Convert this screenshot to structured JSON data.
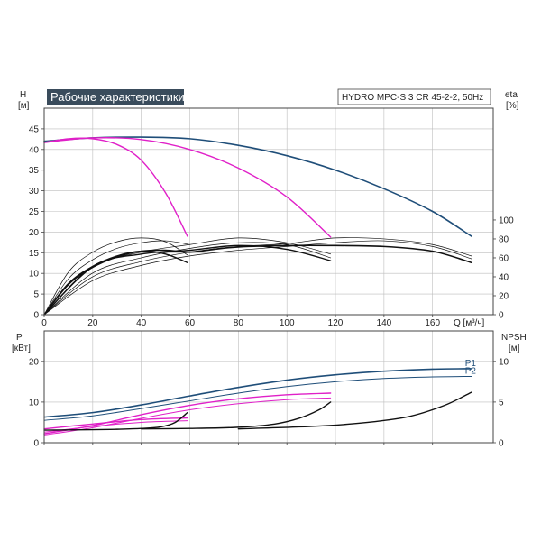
{
  "chart_data": [
    {
      "type": "line",
      "title": "Рабочие характеристики",
      "model": "HYDRO MPC-S 3 CR 45-2-2, 50Hz",
      "xlabel": "Q [м³/ч]",
      "ylabel_left": "H\n[м]",
      "ylabel_right": "eta\n[%]",
      "xlim": [
        0,
        185
      ],
      "ylim_left": [
        0,
        50
      ],
      "ylim_right": [
        0,
        218
      ],
      "x_ticks": [
        "0",
        "20",
        "40",
        "60",
        "80",
        "100",
        "120",
        "140",
        "160"
      ],
      "y_ticks_left": [
        "0",
        "5",
        "10",
        "15",
        "20",
        "25",
        "30",
        "35",
        "40",
        "45"
      ],
      "y_ticks_right": [
        "0",
        "20",
        "40",
        "60",
        "80",
        "100"
      ],
      "grid": true,
      "colors": {
        "head_max": "#1f4e79",
        "head_part": "#e020c8",
        "curves": "#111111"
      },
      "series": [
        {
          "axis": "left",
          "color": "#1f4e79",
          "width": 1.6,
          "points": [
            [
              0,
              42
            ],
            [
              20,
              42.8
            ],
            [
              40,
              43
            ],
            [
              60,
              42.6
            ],
            [
              80,
              41
            ],
            [
              100,
              38.5
            ],
            [
              120,
              35
            ],
            [
              140,
              30.5
            ],
            [
              160,
              25
            ],
            [
              176,
              19
            ]
          ]
        },
        {
          "axis": "left",
          "color": "#e020c8",
          "width": 1.4,
          "points": [
            [
              0,
              41.7
            ],
            [
              20,
              42.8
            ],
            [
              40,
              42.4
            ],
            [
              60,
              40
            ],
            [
              80,
              35.5
            ],
            [
              100,
              28.5
            ],
            [
              118,
              18.8
            ]
          ]
        },
        {
          "axis": "left",
          "color": "#e020c8",
          "width": 1.4,
          "points": [
            [
              0,
              41.7
            ],
            [
              10,
              42.6
            ],
            [
              20,
              42.6
            ],
            [
              30,
              41.2
            ],
            [
              40,
              37.4
            ],
            [
              50,
              29.5
            ],
            [
              59,
              19
            ]
          ]
        },
        {
          "axis": "right",
          "color": "#111111",
          "width": 1.6,
          "points": [
            [
              0,
              0
            ],
            [
              10,
              32
            ],
            [
              20,
              50
            ],
            [
              30,
              61
            ],
            [
              40,
              67
            ],
            [
              50,
              68
            ],
            [
              60,
              66
            ],
            [
              70,
              69
            ],
            [
              80,
              71.5
            ],
            [
              100,
              73
            ],
            [
              120,
              73
            ],
            [
              140,
              72
            ],
            [
              160,
              67
            ],
            [
              176,
              55
            ]
          ]
        },
        {
          "axis": "right",
          "color": "#111111",
          "width": 1.4,
          "points": [
            [
              0,
              0
            ],
            [
              10,
              33
            ],
            [
              20,
              51
            ],
            [
              30,
              62
            ],
            [
              40,
              67
            ],
            [
              50,
              64
            ],
            [
              59,
              55
            ]
          ]
        },
        {
          "axis": "right",
          "color": "#111111",
          "width": 1.4,
          "points": [
            [
              0,
              0
            ],
            [
              20,
              51
            ],
            [
              40,
              64
            ],
            [
              60,
              68
            ],
            [
              80,
              73
            ],
            [
              100,
              69
            ],
            [
              118,
              57
            ]
          ]
        },
        {
          "axis": "right",
          "color": "#111111",
          "width": 0.7,
          "points": [
            [
              0,
              0
            ],
            [
              10,
              45
            ],
            [
              20,
              66
            ],
            [
              30,
              77
            ],
            [
              40,
              81
            ],
            [
              50,
              77
            ],
            [
              59,
              63
            ]
          ]
        },
        {
          "axis": "right",
          "color": "#111111",
          "width": 0.7,
          "points": [
            [
              0,
              0
            ],
            [
              10,
              38
            ],
            [
              20,
              58
            ],
            [
              30,
              70
            ],
            [
              40,
              76
            ],
            [
              50,
              78
            ],
            [
              60,
              74
            ]
          ]
        },
        {
          "axis": "right",
          "color": "#111111",
          "width": 0.7,
          "points": [
            [
              0,
              0
            ],
            [
              20,
              50
            ],
            [
              40,
              66
            ],
            [
              60,
              74
            ],
            [
              80,
              81
            ],
            [
              100,
              76
            ],
            [
              118,
              64
            ]
          ]
        },
        {
          "axis": "right",
          "color": "#111111",
          "width": 0.7,
          "points": [
            [
              0,
              0
            ],
            [
              20,
              44
            ],
            [
              40,
              60
            ],
            [
              60,
              70
            ],
            [
              80,
              76
            ],
            [
              100,
              74
            ],
            [
              118,
              60
            ]
          ]
        },
        {
          "axis": "right",
          "color": "#111111",
          "width": 0.7,
          "points": [
            [
              0,
              0
            ],
            [
              20,
              40
            ],
            [
              40,
              56
            ],
            [
              60,
              66
            ],
            [
              80,
              72
            ],
            [
              100,
              75
            ],
            [
              120,
              81
            ],
            [
              140,
              80
            ],
            [
              160,
              74
            ],
            [
              176,
              62
            ]
          ]
        },
        {
          "axis": "right",
          "color": "#111111",
          "width": 0.7,
          "points": [
            [
              0,
              0
            ],
            [
              20,
              36
            ],
            [
              40,
              52
            ],
            [
              60,
              62
            ],
            [
              80,
              68
            ],
            [
              100,
              72
            ],
            [
              120,
              76
            ],
            [
              140,
              78
            ],
            [
              160,
              72
            ],
            [
              176,
              59
            ]
          ]
        }
      ]
    },
    {
      "type": "line",
      "ylabel_left": "P\n[кВт]",
      "ylabel_right": "NPSH\n[м]",
      "xlim": [
        0,
        185
      ],
      "ylim_left": [
        0,
        27.5
      ],
      "ylim_right": [
        0,
        13.75
      ],
      "y_ticks_left": [
        "0",
        "10",
        "20"
      ],
      "y_ticks_right": [
        "0",
        "5",
        "10"
      ],
      "grid": true,
      "series": [
        {
          "name": "P1",
          "axis": "left",
          "color": "#1f4e79",
          "width": 1.6,
          "points": [
            [
              0,
              6.3
            ],
            [
              20,
              7.4
            ],
            [
              40,
              9.3
            ],
            [
              60,
              11.5
            ],
            [
              80,
              13.6
            ],
            [
              100,
              15.4
            ],
            [
              120,
              16.7
            ],
            [
              140,
              17.6
            ],
            [
              160,
              18.1
            ],
            [
              176,
              18.2
            ]
          ]
        },
        {
          "name": "P2",
          "axis": "left",
          "color": "#1f4e79",
          "width": 1.0,
          "points": [
            [
              0,
              5.5
            ],
            [
              20,
              6.6
            ],
            [
              40,
              8.4
            ],
            [
              60,
              10.3
            ],
            [
              80,
              12.2
            ],
            [
              100,
              13.8
            ],
            [
              120,
              15
            ],
            [
              140,
              15.8
            ],
            [
              160,
              16.2
            ],
            [
              176,
              16.3
            ]
          ]
        },
        {
          "axis": "left",
          "color": "#e020c8",
          "width": 1.4,
          "points": [
            [
              0,
              2.2
            ],
            [
              20,
              4.2
            ],
            [
              40,
              6.9
            ],
            [
              60,
              9.2
            ],
            [
              80,
              10.8
            ],
            [
              100,
              11.8
            ],
            [
              118,
              12.2
            ]
          ]
        },
        {
          "axis": "left",
          "color": "#e020c8",
          "width": 1.0,
          "points": [
            [
              0,
              1.9
            ],
            [
              20,
              3.7
            ],
            [
              40,
              6.0
            ],
            [
              60,
              8.1
            ],
            [
              80,
              9.6
            ],
            [
              100,
              10.6
            ],
            [
              118,
              11
            ]
          ]
        },
        {
          "axis": "left",
          "color": "#e020c8",
          "width": 1.4,
          "points": [
            [
              0,
              3.4
            ],
            [
              20,
              4.6
            ],
            [
              40,
              5.7
            ],
            [
              59,
              6.1
            ]
          ]
        },
        {
          "axis": "left",
          "color": "#e020c8",
          "width": 1.0,
          "points": [
            [
              0,
              2.6
            ],
            [
              20,
              4.0
            ],
            [
              40,
              5.0
            ],
            [
              59,
              5.4
            ]
          ]
        },
        {
          "axis": "right",
          "color": "#111111",
          "width": 1.4,
          "points": [
            [
              0,
              1.55
            ],
            [
              20,
              1.6
            ],
            [
              30,
              1.65
            ],
            [
              40,
              1.75
            ],
            [
              48,
              1.95
            ],
            [
              54,
              2.5
            ],
            [
              59,
              3.7
            ]
          ]
        },
        {
          "axis": "right",
          "color": "#111111",
          "width": 1.4,
          "points": [
            [
              40,
              1.7
            ],
            [
              60,
              1.75
            ],
            [
              80,
              1.9
            ],
            [
              95,
              2.3
            ],
            [
              105,
              3.0
            ],
            [
              113,
              4.0
            ],
            [
              118,
              5.0
            ]
          ]
        },
        {
          "axis": "right",
          "color": "#111111",
          "width": 1.4,
          "points": [
            [
              80,
              1.7
            ],
            [
              110,
              2.0
            ],
            [
              130,
              2.4
            ],
            [
              150,
              3.2
            ],
            [
              165,
              4.6
            ],
            [
              176,
              6.2
            ]
          ]
        }
      ]
    }
  ]
}
